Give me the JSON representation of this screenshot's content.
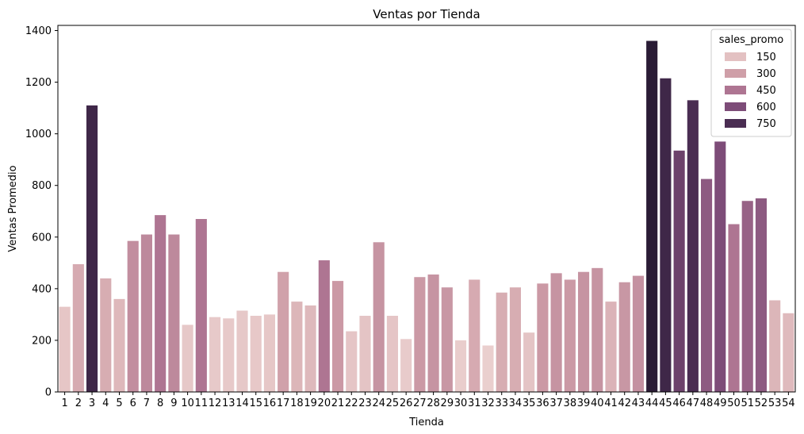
{
  "chart_data": {
    "type": "bar",
    "title": "Ventas por Tienda",
    "xlabel": "Tienda",
    "ylabel": "Ventas Promedio",
    "ylim": [
      0,
      1420
    ],
    "yticks": [
      0,
      200,
      400,
      600,
      800,
      1000,
      1200,
      1400
    ],
    "categories": [
      "1",
      "2",
      "3",
      "4",
      "5",
      "6",
      "7",
      "8",
      "9",
      "10",
      "11",
      "12",
      "13",
      "14",
      "15",
      "16",
      "17",
      "18",
      "19",
      "20",
      "21",
      "22",
      "23",
      "24",
      "25",
      "26",
      "27",
      "28",
      "29",
      "30",
      "31",
      "32",
      "33",
      "34",
      "35",
      "36",
      "37",
      "38",
      "39",
      "40",
      "41",
      "42",
      "43",
      "44",
      "45",
      "46",
      "47",
      "48",
      "49",
      "50",
      "51",
      "52",
      "53",
      "54"
    ],
    "values": [
      330,
      495,
      1110,
      440,
      360,
      585,
      610,
      685,
      610,
      260,
      670,
      290,
      285,
      315,
      295,
      300,
      465,
      350,
      335,
      510,
      430,
      235,
      295,
      580,
      295,
      205,
      445,
      455,
      405,
      200,
      435,
      180,
      385,
      405,
      230,
      420,
      460,
      435,
      465,
      480,
      350,
      425,
      450,
      1360,
      1215,
      935,
      1130,
      825,
      970,
      650,
      740,
      750,
      355,
      305
    ],
    "hue_name": "sales_promo",
    "hue_values": [
      115,
      250,
      800,
      240,
      190,
      360,
      380,
      450,
      380,
      105,
      450,
      95,
      95,
      105,
      100,
      110,
      290,
      200,
      185,
      450,
      320,
      120,
      130,
      340,
      120,
      80,
      320,
      340,
      330,
      70,
      250,
      55,
      240,
      240,
      130,
      320,
      340,
      320,
      340,
      340,
      210,
      330,
      350,
      900,
      800,
      650,
      750,
      550,
      600,
      450,
      520,
      550,
      200,
      180
    ],
    "legend": {
      "title": "sales_promo",
      "position": "upper right",
      "entries": [
        {
          "label": "150",
          "color": "#e3c1c2"
        },
        {
          "label": "300",
          "color": "#cf9fa8"
        },
        {
          "label": "450",
          "color": "#ae7592"
        },
        {
          "label": "600",
          "color": "#7d4c78"
        },
        {
          "label": "750",
          "color": "#4a2d52"
        }
      ]
    },
    "palette": {
      "stops": [
        0,
        150,
        300,
        450,
        600,
        750,
        900
      ],
      "colors": [
        "#eed7d5",
        "#e3c1c2",
        "#cf9fa8",
        "#ae7592",
        "#7d4c78",
        "#4a2d52",
        "#2a1c35"
      ]
    },
    "grid": false
  }
}
